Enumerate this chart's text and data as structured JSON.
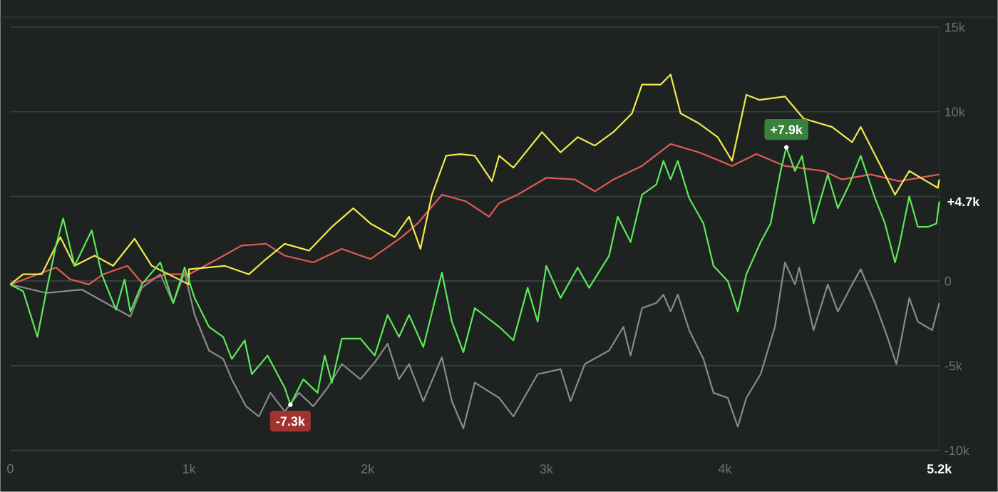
{
  "chart_data": {
    "type": "line",
    "xlim": [
      0,
      5200
    ],
    "ylim": [
      -10000,
      15000
    ],
    "xticks": [
      0,
      {
        "value": 1000,
        "label": "1k"
      },
      {
        "value": 2000,
        "label": "2k"
      },
      {
        "value": 3000,
        "label": "3k"
      },
      {
        "value": 4000,
        "label": "4k"
      },
      {
        "value": 5200,
        "label": "5.2k"
      }
    ],
    "yticks": [
      {
        "value": -10000,
        "label": "-10k"
      },
      {
        "value": -5000,
        "label": "-5k"
      },
      0,
      {
        "value": 5000,
        "label": null
      },
      {
        "value": 10000,
        "label": "10k"
      },
      {
        "value": 15000,
        "label": "15k"
      }
    ],
    "grid": "y",
    "series": [
      {
        "color": "#8a8a8a",
        "x": [
          0,
          200,
          400,
          672,
          736,
          840,
          912,
          976,
          1032,
          1112,
          1192,
          1240,
          1320,
          1392,
          1456,
          1536,
          1616,
          1696,
          1776,
          1856,
          1960,
          2040,
          2112,
          2176,
          2232,
          2312,
          2416,
          2472,
          2536,
          2600,
          2736,
          2816,
          2952,
          3080,
          3136,
          3216,
          3352,
          3432,
          3472,
          3536,
          3616,
          3656,
          3696,
          3736,
          3800,
          3880,
          3936,
          4016,
          4072,
          4120,
          4200,
          4280,
          4336,
          4392,
          4416,
          4496,
          4576,
          4632,
          4712,
          4760,
          4840,
          4896,
          4960,
          5032,
          5080,
          5160,
          5200
        ],
        "values": [
          -200,
          -700,
          -500,
          -2100,
          -400,
          400,
          -1300,
          500,
          -2000,
          -4100,
          -4600,
          -5800,
          -7400,
          -8000,
          -6600,
          -7700,
          -6600,
          -7400,
          -6300,
          -4900,
          -5800,
          -4800,
          -3700,
          -5800,
          -4900,
          -7100,
          -4500,
          -7100,
          -8700,
          -6000,
          -6900,
          -8000,
          -5500,
          -5200,
          -7100,
          -4900,
          -4100,
          -2700,
          -4400,
          -1600,
          -1300,
          -800,
          -1800,
          -800,
          -2900,
          -4600,
          -6600,
          -6900,
          -8600,
          -6900,
          -5500,
          -2700,
          1100,
          -200,
          800,
          -2900,
          -200,
          -1800,
          -200,
          700,
          -1300,
          -2900,
          -4900,
          -1000,
          -2400,
          -2900,
          -1300
        ]
      },
      {
        "color": "#e05b55",
        "x": [
          0,
          256,
          336,
          440,
          520,
          656,
          736,
          872,
          1000,
          1160,
          1296,
          1432,
          1536,
          1696,
          1856,
          2016,
          2192,
          2280,
          2416,
          2552,
          2680,
          2736,
          2840,
          3000,
          3160,
          3272,
          3376,
          3536,
          3696,
          3856,
          4040,
          4176,
          4336,
          4552,
          4656,
          4816,
          4976,
          5200
        ],
        "values": [
          -200,
          800,
          100,
          -200,
          400,
          900,
          -100,
          400,
          400,
          1300,
          2100,
          2200,
          1500,
          1100,
          1900,
          1300,
          2600,
          3400,
          5100,
          4700,
          3800,
          4600,
          5100,
          6100,
          6000,
          5300,
          6000,
          6800,
          8100,
          7600,
          6800,
          7500,
          6800,
          6500,
          6000,
          6300,
          5900,
          6300
        ]
      },
      {
        "color": "#f2e94e",
        "x": [
          0,
          72,
          176,
          280,
          360,
          472,
          576,
          696,
          792,
          1000,
          1000,
          1200,
          1336,
          1432,
          1536,
          1672,
          1800,
          1920,
          2016,
          2152,
          2232,
          2296,
          2360,
          2440,
          2520,
          2600,
          2696,
          2736,
          2816,
          2976,
          3080,
          3176,
          3272,
          3376,
          3480,
          3536,
          3640,
          3696,
          3752,
          3856,
          3960,
          4040,
          4120,
          4192,
          4336,
          4440,
          4600,
          4712,
          4760,
          4872,
          4952,
          5032,
          5112,
          5192,
          5200
        ],
        "values": [
          -200,
          400,
          400,
          2600,
          900,
          1500,
          900,
          2500,
          900,
          -200,
          700,
          900,
          400,
          1300,
          2200,
          1800,
          3200,
          4300,
          3400,
          2600,
          3800,
          1900,
          5100,
          7400,
          7500,
          7400,
          5900,
          7400,
          6700,
          8800,
          7600,
          8500,
          8000,
          8800,
          9900,
          11600,
          11600,
          12200,
          9900,
          9300,
          8500,
          7100,
          11000,
          10700,
          10900,
          9600,
          9100,
          8200,
          9100,
          6800,
          5100,
          6500,
          6000,
          5500,
          6000
        ]
      },
      {
        "color": "#5ee85a",
        "x": [
          0,
          72,
          152,
          200,
          256,
          296,
          360,
          456,
          512,
          592,
          640,
          672,
          736,
          840,
          912,
          976,
          1032,
          1112,
          1192,
          1240,
          1312,
          1352,
          1440,
          1536,
          1568,
          1640,
          1720,
          1760,
          1800,
          1856,
          1960,
          2040,
          2112,
          2176,
          2232,
          2312,
          2416,
          2472,
          2536,
          2600,
          2736,
          2816,
          2896,
          2952,
          3000,
          3080,
          3176,
          3240,
          3352,
          3400,
          3472,
          3536,
          3616,
          3656,
          3696,
          3736,
          3800,
          3880,
          3936,
          4016,
          4072,
          4120,
          4200,
          4256,
          4312,
          4344,
          4392,
          4432,
          4496,
          4576,
          4632,
          4696,
          4760,
          4840,
          4896,
          4952,
          4976,
          5032,
          5080,
          5136,
          5184,
          5200
        ],
        "values": [
          -200,
          -600,
          -3300,
          -700,
          2100,
          3700,
          900,
          3000,
          400,
          -1700,
          100,
          -1800,
          -200,
          1100,
          -1300,
          800,
          -1000,
          -2700,
          -3300,
          -4600,
          -3500,
          -5500,
          -4400,
          -6300,
          -7300,
          -5800,
          -6600,
          -4400,
          -6000,
          -3400,
          -3400,
          -4400,
          -2000,
          -3300,
          -2000,
          -3900,
          500,
          -2400,
          -4200,
          -1600,
          -2700,
          -3500,
          -400,
          -2400,
          900,
          -1000,
          800,
          -400,
          1500,
          3800,
          2300,
          5100,
          5700,
          7100,
          6000,
          7100,
          4900,
          3400,
          900,
          0,
          -1800,
          400,
          2300,
          3400,
          6500,
          7900,
          6500,
          7400,
          3400,
          6300,
          4300,
          5700,
          7400,
          4900,
          3400,
          1100,
          2100,
          5000,
          3200,
          3200,
          3400,
          4700
        ]
      }
    ],
    "annotations": [
      {
        "text": "-7.3k",
        "x": 1568,
        "y": -7300
      },
      {
        "text": "+7.9k",
        "x": 4344,
        "y": 7900
      },
      {
        "text": "+4.7k",
        "x": 5200,
        "y": 4700
      }
    ]
  }
}
